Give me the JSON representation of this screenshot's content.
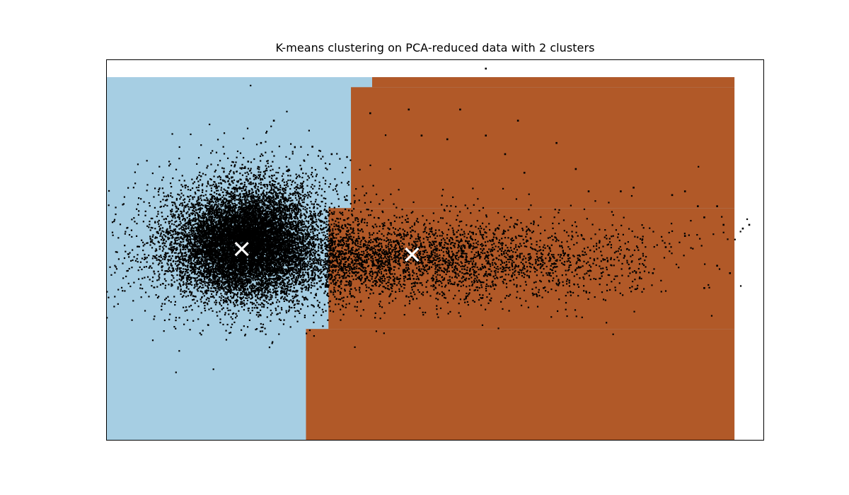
{
  "chart_data": {
    "type": "scatter",
    "title": "K-means clustering on PCA-reduced data with 2 clusters",
    "xlabel": "",
    "ylabel": "",
    "axes_visible": false,
    "grid": false,
    "legend": "none",
    "n_clusters": 2,
    "colors": {
      "cluster_0_region": "#a6cee3",
      "cluster_1_region": "#b15928",
      "points": "#000000",
      "centroids": "#ffffff",
      "frame": "#000000"
    },
    "centroids": [
      {
        "cluster": 0,
        "x": 0.21,
        "y": 0.515
      },
      {
        "cluster": 1,
        "x": 0.475,
        "y": 0.5
      }
    ],
    "decision_boundary_steps": [
      {
        "y_from": 0.0,
        "y_to": 0.3,
        "x": 0.31
      },
      {
        "y_from": 0.3,
        "y_to": 0.625,
        "x": 0.345
      },
      {
        "y_from": 0.625,
        "y_to": 0.95,
        "x": 0.38
      },
      {
        "y_from": 0.95,
        "y_to": 1.0,
        "x": 0.413
      }
    ],
    "region_extent": {
      "x": [
        0.0,
        0.977
      ],
      "y": [
        0.0,
        0.977
      ]
    },
    "point_clusters": [
      {
        "center": [
          0.21,
          0.52
        ],
        "spread": [
          0.05,
          0.065
        ],
        "count": 9000,
        "tail": 0.2
      },
      {
        "center": [
          0.24,
          0.57
        ],
        "spread": [
          0.04,
          0.07
        ],
        "count": 3200,
        "tail": 0.5
      },
      {
        "center": [
          0.46,
          0.49
        ],
        "spread": [
          0.12,
          0.05
        ],
        "count": 2800,
        "tail": 0.5
      }
    ],
    "outliers": [
      [
        0.59,
        1.0
      ],
      [
        0.41,
        0.88
      ],
      [
        0.47,
        0.89
      ],
      [
        0.55,
        0.89
      ],
      [
        0.64,
        0.86
      ],
      [
        0.49,
        0.82
      ],
      [
        0.53,
        0.81
      ],
      [
        0.59,
        0.82
      ],
      [
        0.62,
        0.77
      ],
      [
        0.7,
        0.8
      ],
      [
        0.65,
        0.72
      ],
      [
        0.73,
        0.73
      ],
      [
        0.75,
        0.67
      ],
      [
        0.8,
        0.67
      ],
      [
        0.82,
        0.68
      ],
      [
        0.88,
        0.66
      ],
      [
        0.9,
        0.67
      ],
      [
        0.92,
        0.63
      ],
      [
        0.93,
        0.6
      ],
      [
        0.95,
        0.63
      ],
      [
        0.96,
        0.58
      ],
      [
        0.99,
        0.57
      ],
      [
        1.0,
        0.58
      ],
      [
        0.9,
        0.55
      ],
      [
        0.87,
        0.52
      ],
      [
        0.85,
        0.45
      ],
      [
        0.95,
        0.47
      ],
      [
        0.93,
        0.41
      ],
      [
        0.97,
        0.45
      ],
      [
        0.72,
        0.43
      ],
      [
        0.77,
        0.45
      ],
      [
        0.68,
        0.41
      ],
      [
        0.26,
        0.86
      ],
      [
        0.24,
        0.8
      ],
      [
        0.22,
        0.75
      ],
      [
        0.32,
        0.79
      ],
      [
        0.35,
        0.77
      ]
    ]
  }
}
